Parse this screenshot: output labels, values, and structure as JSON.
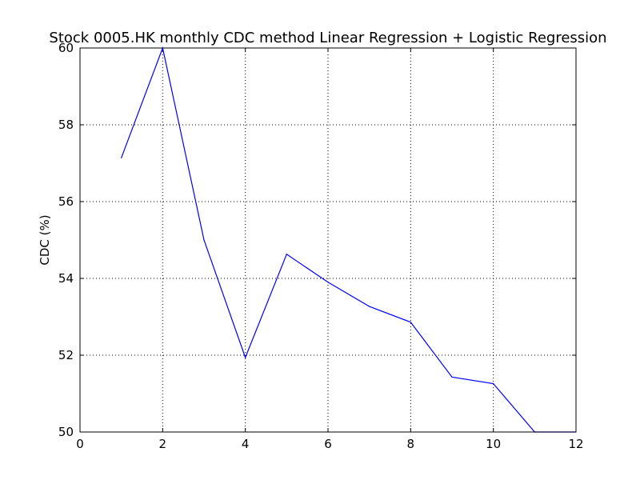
{
  "chart_data": {
    "type": "line",
    "title": "Stock 0005.HK monthly CDC method Linear Regression + Logistic Regression",
    "xlabel": "",
    "ylabel": "CDC (%)",
    "xlim": [
      0,
      12
    ],
    "ylim": [
      50,
      60
    ],
    "x_ticks": [
      "0",
      "2",
      "4",
      "6",
      "8",
      "10",
      "12"
    ],
    "y_ticks": [
      "50",
      "52",
      "54",
      "56",
      "58",
      "60"
    ],
    "grid": true,
    "line_color": "#0000ff",
    "series": [
      {
        "x": [
          1,
          2,
          3,
          4,
          5,
          6,
          7,
          8,
          9,
          10,
          11,
          12
        ],
        "values": [
          57.14,
          60.0,
          55.0,
          51.94,
          54.63,
          53.9,
          53.27,
          52.86,
          51.43,
          51.26,
          50.0,
          50.0
        ]
      }
    ]
  }
}
